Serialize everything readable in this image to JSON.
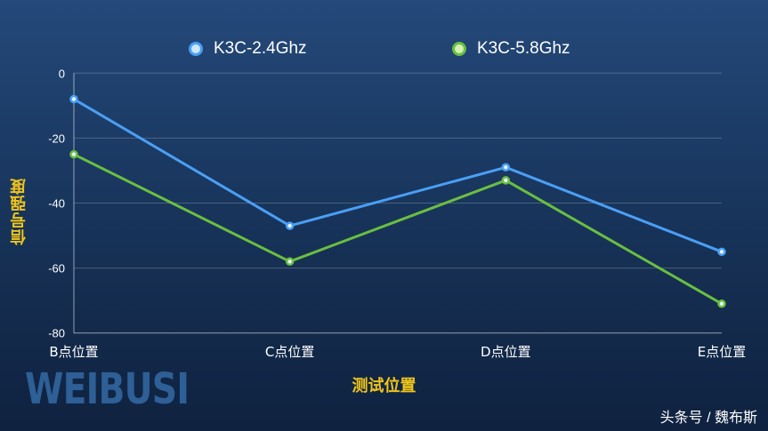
{
  "chart_data": {
    "type": "line",
    "title": "",
    "xlabel": "测试位置",
    "ylabel": "信号强度",
    "categories": [
      "B点位置",
      "C点位置",
      "D点位置",
      "E点位置"
    ],
    "ylim": [
      -80,
      0
    ],
    "yticks": [
      "0",
      "-20",
      "-40",
      "-60",
      "-80"
    ],
    "grid": true,
    "legend_position": "top",
    "series": [
      {
        "name": "K3C-2.4Ghz",
        "color": "#4a9ff5",
        "values": [
          -8,
          -47,
          -29,
          -55
        ]
      },
      {
        "name": "K3C-5.8Ghz",
        "color": "#6abf40",
        "values": [
          -25,
          -58,
          -33,
          -71
        ]
      }
    ]
  },
  "branding": {
    "logo": "WEIBUSI",
    "watermark": "头条号 / 魏布斯"
  }
}
